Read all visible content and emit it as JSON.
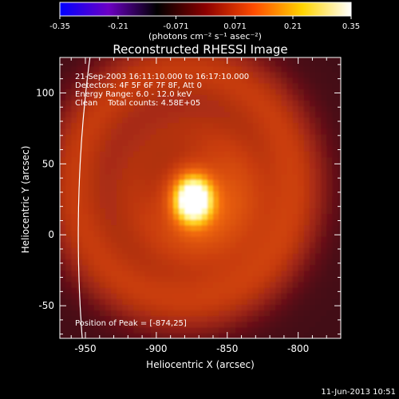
{
  "colorbar": {
    "ticks": [
      "-0.35",
      "-0.21",
      "-0.071",
      "0.071",
      "0.21",
      "0.35"
    ],
    "unit_label": "(photons cm⁻² s⁻¹ asec⁻²)",
    "range": [
      -0.35,
      0.35
    ],
    "palette": [
      "#0000ff",
      "#6c00c4",
      "#000000",
      "#8b0000",
      "#ff4c00",
      "#ffd400",
      "#ffffff"
    ]
  },
  "chart_data": {
    "type": "heatmap",
    "title": "Reconstructed RHESSI Image",
    "xlabel": "Heliocentric X (arcsec)",
    "ylabel": "Heliocentric Y (arcsec)",
    "xlim": [
      -968,
      -770
    ],
    "ylim": [
      -73,
      125
    ],
    "x_ticks": [
      -950,
      -900,
      -850,
      -800
    ],
    "y_ticks": [
      -50,
      0,
      50,
      100
    ],
    "peak": {
      "x": -874,
      "y": 25,
      "value": 0.35
    },
    "annotations": {
      "time": "21-Sep-2003 16:11:10.000 to 16:17:10.000",
      "detectors": "Detectors: 4F 5F 6F 7F 8F, Att 0",
      "energy": "Energy Range: 6.0 - 12.0 keV",
      "clean": "Clean    Total counts: 4.58E+05",
      "peak_text": "Position of Peak = [-874,25]"
    }
  },
  "footer": {
    "timestamp": "11-Jun-2013 10:51"
  }
}
